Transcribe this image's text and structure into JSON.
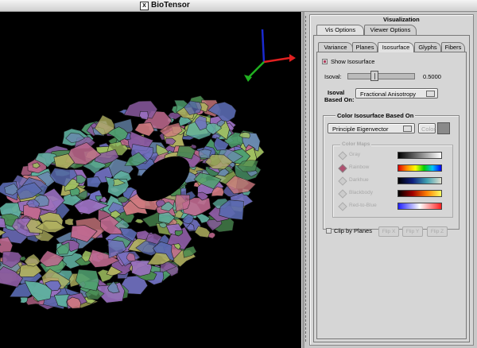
{
  "window": {
    "title": "BioTensor"
  },
  "panel": {
    "title": "Visualization",
    "top_tabs": [
      "Vis Options",
      "Viewer Options"
    ],
    "sub_tabs": [
      "Variance",
      "Planes",
      "Isosurface",
      "Glyphs",
      "Fibers"
    ],
    "show_isosurface": {
      "label": "Show Isosurface",
      "checked": true
    },
    "isoval": {
      "label": "Isoval:",
      "value": "0.5000",
      "fraction": 0.5
    },
    "isoval_based_on": {
      "label_line1": "Isoval",
      "label_line2": "Based On:",
      "value": "Fractional Anisotropy"
    },
    "color_group": {
      "title": "Color Isosurface Based On",
      "dropdown": "Principle Eigenvector",
      "color_button": "Color",
      "swatch_color": "#8a8a8a"
    },
    "color_maps": {
      "title": "Color Maps",
      "items": [
        {
          "label": "Gray",
          "selected": false,
          "gradient": "linear-gradient(to right,#000,#fff)"
        },
        {
          "label": "Rainbow",
          "selected": true,
          "gradient": "linear-gradient(to right,#e00000,#ff9000,#ffff00,#00d000,#00c0ff,#0000ff)"
        },
        {
          "label": "Darkhue",
          "selected": false,
          "gradient": "linear-gradient(to right,#000,#102080,#40a0b0,#e0e0d0)"
        },
        {
          "label": "Blackbody",
          "selected": false,
          "gradient": "linear-gradient(to right,#000,#a00000,#ff8000,#ffff60)"
        },
        {
          "label": "Red-to-Blue",
          "selected": false,
          "gradient": "linear-gradient(to right,#2020ff,#ffffff,#ff2020)"
        }
      ]
    },
    "clip": {
      "label": "Clip by Planes",
      "checked": false,
      "buttons": [
        "Flip X",
        "Flip Y",
        "Flip Z"
      ]
    }
  },
  "colors": {
    "accent": "#b04060",
    "viewer_bg": "#000000"
  }
}
